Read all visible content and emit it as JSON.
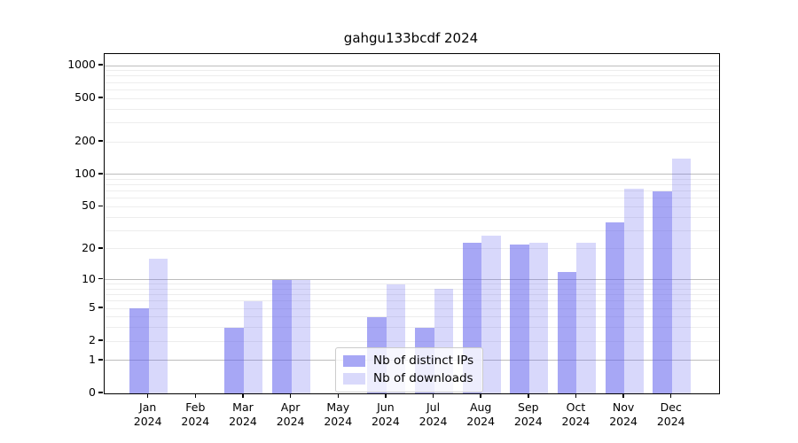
{
  "figure": {
    "title": "gahgu133bcdf 2024"
  },
  "chart_data": {
    "type": "bar",
    "title": "gahgu133bcdf 2024",
    "categories": [
      "Jan 2024",
      "Feb 2024",
      "Mar 2024",
      "Apr 2024",
      "May 2024",
      "Jun 2024",
      "Jul 2024",
      "Aug 2024",
      "Sep 2024",
      "Oct 2024",
      "Nov 2024",
      "Dec 2024"
    ],
    "x_tick_months": [
      "Jan",
      "Feb",
      "Mar",
      "Apr",
      "May",
      "Jun",
      "Jul",
      "Aug",
      "Sep",
      "Oct",
      "Nov",
      "Dec"
    ],
    "x_tick_year": "2024",
    "series": [
      {
        "name": "Nb of distinct IPs",
        "values": [
          5,
          0,
          3,
          10,
          0,
          4,
          3,
          23,
          22,
          12,
          36,
          70
        ],
        "base_color": "#6464ee",
        "alpha": 0.57
      },
      {
        "name": "Nb of downloads",
        "values": [
          16,
          0,
          6,
          10,
          0,
          9,
          8,
          27,
          23,
          23,
          74,
          140
        ],
        "base_color": "#6464ee",
        "alpha": 0.25
      }
    ],
    "yscale": "log1p",
    "ylim": [
      0,
      1276
    ],
    "yticks": [
      0,
      1,
      2,
      5,
      10,
      20,
      50,
      100,
      200,
      500,
      1000
    ],
    "major_gridlines": [
      1,
      10,
      100,
      1000
    ],
    "minor_gridlines": [
      2,
      3,
      4,
      5,
      6,
      7,
      8,
      9,
      20,
      30,
      40,
      50,
      60,
      70,
      80,
      90,
      200,
      300,
      400,
      500,
      600,
      700,
      800,
      900
    ],
    "grid": "horizontal",
    "legend": {
      "position": "lower-center-inside",
      "entries": [
        "Nb of distinct IPs",
        "Nb of downloads"
      ]
    },
    "colors": {
      "distinct_ips_bar_on_white": "#a7a7f5",
      "downloads_bar_on_white": "#d9d9fb",
      "major_grid": "#bdbdbd",
      "minor_grid": "#ededed",
      "spine": "#000000",
      "text": "#000000"
    }
  }
}
